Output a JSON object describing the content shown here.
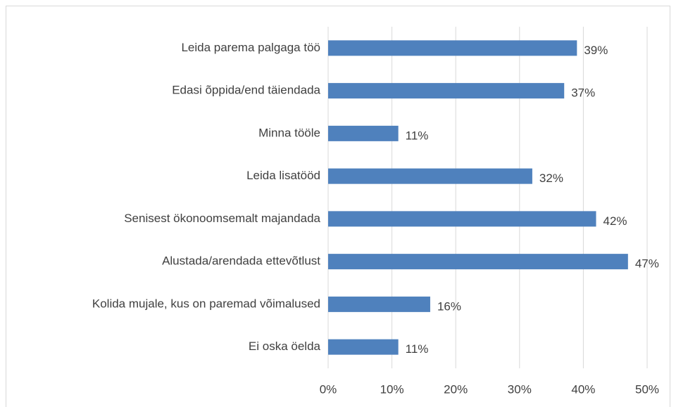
{
  "chart_data": {
    "type": "bar",
    "orientation": "horizontal",
    "categories": [
      "Leida parema palgaga töö",
      "Edasi õppida/end täiendada",
      "Minna tööle",
      "Leida lisatööd",
      "Senisest ökonoomsemalt majandada",
      "Alustada/arendada ettevõtlust",
      "Kolida mujale, kus on paremad võimalused",
      "Ei oska öelda"
    ],
    "values": [
      39,
      37,
      11,
      32,
      42,
      47,
      16,
      11
    ],
    "value_labels": [
      "39%",
      "37%",
      "11%",
      "32%",
      "42%",
      "47%",
      "16%",
      "11%"
    ],
    "color": "#4f81bd",
    "xlim": [
      0,
      50
    ],
    "xticks": [
      {
        "value": 0,
        "label": "0%"
      },
      {
        "value": 10,
        "label": "10%"
      },
      {
        "value": 20,
        "label": "20%"
      },
      {
        "value": 30,
        "label": "30%"
      },
      {
        "value": 40,
        "label": "40%"
      },
      {
        "value": 50,
        "label": "50%"
      }
    ],
    "grid": true
  }
}
